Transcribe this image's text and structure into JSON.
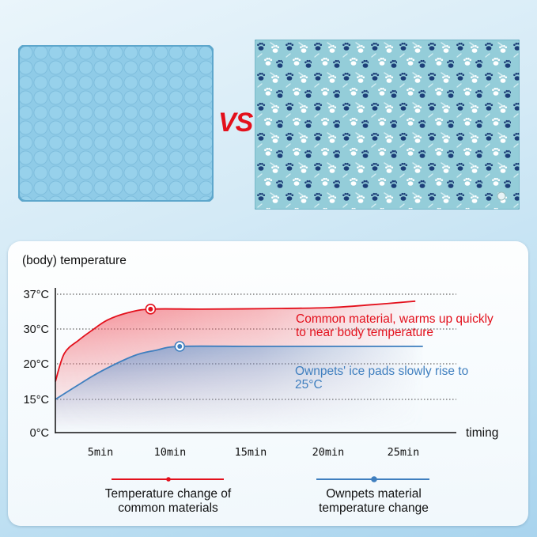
{
  "top": {
    "left_image": "common cooling mat (quilted circles)",
    "right_image": "Ownpets cooling mat (paw pattern)",
    "vs_label": "VS"
  },
  "colors": {
    "red": "#e3101c",
    "blue": "#3f7fbf",
    "navy_paw": "#1d3f78",
    "mat_left": "#8ccbe6",
    "mat_right": "#92cbd8"
  },
  "chart_data": {
    "type": "line",
    "ylabel": "(body) temperature",
    "xlabel": "timing",
    "y_ticks": [
      {
        "value": 0,
        "label": "0°C"
      },
      {
        "value": 15,
        "label": "15°C"
      },
      {
        "value": 20,
        "label": "20°C"
      },
      {
        "value": 30,
        "label": "30°C"
      },
      {
        "value": 37,
        "label": "37°C"
      }
    ],
    "x_ticks": [
      {
        "value": 5,
        "label": "5min"
      },
      {
        "value": 10,
        "label": "10min"
      },
      {
        "value": 15,
        "label": "15min"
      },
      {
        "value": 20,
        "label": "20min"
      },
      {
        "value": 25,
        "label": "25min"
      }
    ],
    "grid": "dotted horizontal at y ticks",
    "series": [
      {
        "name": "Temperature change of common materials",
        "color": "#e3101c",
        "points": [
          [
            0,
            17.5
          ],
          [
            1,
            23
          ],
          [
            2.6,
            26.8
          ],
          [
            4,
            29.5
          ],
          [
            5.5,
            31.8
          ],
          [
            7,
            33.3
          ],
          [
            8.6,
            34
          ],
          [
            12,
            34
          ],
          [
            16,
            34.1
          ],
          [
            20,
            34.3
          ],
          [
            23,
            34.9
          ],
          [
            25.8,
            35.6
          ]
        ],
        "marker": [
          8.6,
          34
        ],
        "annotation": "Common material, warms up quickly to near body temperature"
      },
      {
        "name": "Ownpets material temperature change",
        "color": "#3f7fbf",
        "points": [
          [
            0,
            15
          ],
          [
            2.5,
            17
          ],
          [
            5,
            18.9
          ],
          [
            7.4,
            22.3
          ],
          [
            9,
            23.9
          ],
          [
            10.6,
            25
          ],
          [
            15,
            25
          ],
          [
            20,
            25
          ],
          [
            26.3,
            25
          ]
        ],
        "marker": [
          10.6,
          25
        ],
        "annotation": "Ownpets' ice pads slowly rise to 25°C"
      }
    ],
    "legend_placement": "bottom"
  },
  "annotations": {
    "red_line1": "Common material, warms up quickly",
    "red_line2": "to near body temperature",
    "blue_line1": "Ownpets' ice pads slowly rise to",
    "blue_line2": "25°C"
  },
  "legend": {
    "red_line1": "Temperature change of",
    "red_line2": "common materials",
    "blue_line1": "Ownpets material",
    "blue_line2": "temperature change"
  }
}
